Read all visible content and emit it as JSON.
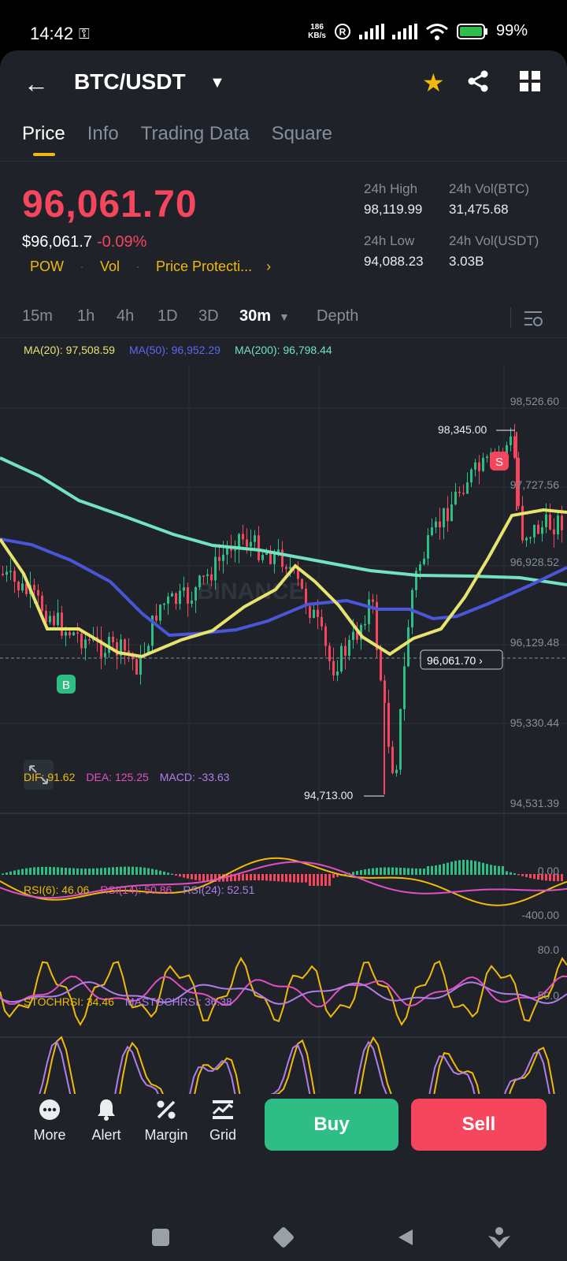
{
  "status_bar": {
    "time": "14:42",
    "net_speed_value": "186",
    "net_speed_unit": "KB/s",
    "battery": "99%"
  },
  "header": {
    "pair": "BTC/USDT",
    "icons": [
      "back-arrow-icon",
      "caret-down-icon",
      "star-icon",
      "share-icon",
      "grid-icon"
    ]
  },
  "tabs": [
    {
      "label": "Price",
      "active": true
    },
    {
      "label": "Info",
      "active": false
    },
    {
      "label": "Trading Data",
      "active": false
    },
    {
      "label": "Square",
      "active": false
    }
  ],
  "ticker": {
    "last_price": "96,061.70",
    "usd_price": "$96,061.7",
    "change_pct": "-0.09%",
    "tags": [
      "POW",
      "Vol",
      "Price Protecti..."
    ],
    "high_label": "24h High",
    "high_value": "98,119.99",
    "low_label": "24h Low",
    "low_value": "94,088.23",
    "vol_btc_label": "24h Vol(BTC)",
    "vol_btc_value": "31,475.68",
    "vol_usdt_label": "24h Vol(USDT)",
    "vol_usdt_value": "3.03B"
  },
  "intervals": [
    {
      "label": "15m",
      "active": false
    },
    {
      "label": "1h",
      "active": false
    },
    {
      "label": "4h",
      "active": false
    },
    {
      "label": "1D",
      "active": false
    },
    {
      "label": "3D",
      "active": false
    },
    {
      "label": "30m",
      "active": true
    },
    {
      "label": "Depth",
      "active": false
    }
  ],
  "ma_legend": {
    "ma20": "MA(20): 97,508.59",
    "ma50": "MA(50): 96,952.29",
    "ma200": "MA(200): 96,798.44"
  },
  "colors": {
    "up": "#2ebd85",
    "down": "#f6465d",
    "ma20": "#e6e36f",
    "ma50": "#4a55d8",
    "ma200": "#73e2c0",
    "accent": "#f0b90b"
  },
  "chart_data": {
    "type": "candlestick",
    "price_axis_ticks": [
      "98,526.60",
      "97,727.56",
      "96,928.52",
      "96,129.48",
      "95,330.44",
      "94,531.39"
    ],
    "high_marker": "98,345.00",
    "low_marker": "94,713.00",
    "current_price_label": "96,061.70",
    "buy_marker": "B",
    "sell_marker": "S"
  },
  "macd": {
    "dif": "DIF: 91.62",
    "dea": "DEA: 125.25",
    "macd": "MACD: -33.63",
    "ticks": [
      "0.00",
      "-400.00"
    ]
  },
  "rsi": {
    "rsi6": "RSI(6): 46.06",
    "rsi14": "RSI(14): 50.86",
    "rsi24": "RSI(24): 52.51",
    "ticks": [
      "80.0",
      "50.0"
    ]
  },
  "stochrsi": {
    "stoch": "STOCHRSI: 34.46",
    "mastoch": "MASTOCHRSI: 36.38",
    "ticks": [
      "50.0"
    ]
  },
  "bottom_bar": {
    "more": "More",
    "alert": "Alert",
    "margin": "Margin",
    "grid": "Grid",
    "buy": "Buy",
    "sell": "Sell"
  }
}
